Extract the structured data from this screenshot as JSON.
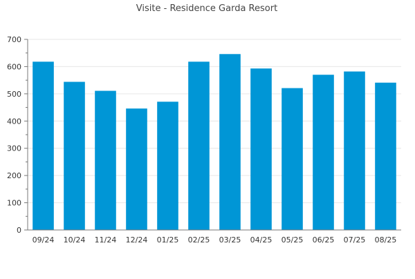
{
  "chart_data": {
    "type": "bar",
    "title": "Visite - Residence Garda Resort",
    "xlabel": "",
    "ylabel": "",
    "categories": [
      "09/24",
      "10/24",
      "11/24",
      "12/24",
      "01/25",
      "02/25",
      "03/25",
      "04/25",
      "05/25",
      "06/25",
      "07/25",
      "08/25"
    ],
    "series": [
      {
        "values": [
          618,
          544,
          511,
          446,
          471,
          618,
          646,
          593,
          521,
          570,
          582,
          541
        ]
      }
    ],
    "ylim": [
      0,
      700
    ],
    "yticks": [
      0,
      100,
      200,
      300,
      400,
      500,
      600,
      700
    ],
    "grid": true,
    "legend": "none",
    "colors": {
      "bar": "#0096d6",
      "grid": "#e6e6e6",
      "axis": "#777777"
    }
  }
}
